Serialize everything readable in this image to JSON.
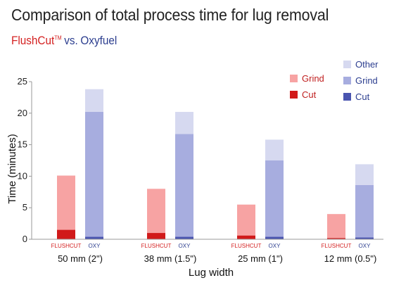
{
  "header": {
    "title": "Comparison of total process time for lug removal",
    "subtitle_a": "FlushCut",
    "subtitle_tm": "TM",
    "subtitle_vs": "vs.",
    "subtitle_b": "Oxyfuel"
  },
  "colors": {
    "flush_grind": "#f7a3a3",
    "flush_cut": "#d11a1a",
    "oxy_other": "#d6d9f0",
    "oxy_grind": "#a7addf",
    "oxy_cut": "#4a55b0",
    "flush_label": "#d42020",
    "oxy_label": "#2c3e8f"
  },
  "chart_data": {
    "type": "bar",
    "stacked": true,
    "xlabel": "Lug width",
    "ylabel": "Time (minutes)",
    "ylim": [
      0,
      25
    ],
    "yticks": [
      0,
      5,
      10,
      15,
      20,
      25
    ],
    "grid": false,
    "legend_position": "top-right",
    "categories": [
      "50 mm (2\")",
      "38 mm (1.5\")",
      "25 mm (1\")",
      "12 mm (0.5\")"
    ],
    "bar_labels": [
      "FLUSHCUT",
      "OXY"
    ],
    "legend": {
      "flushcut": [
        "Grind",
        "Cut"
      ],
      "oxy": [
        "Other",
        "Grind",
        "Cut"
      ]
    },
    "series": [
      {
        "name": "FlushCut Cut",
        "stack": "FLUSHCUT",
        "values": [
          1.5,
          1.0,
          0.6,
          0.2
        ]
      },
      {
        "name": "FlushCut Grind",
        "stack": "FLUSHCUT",
        "values": [
          8.6,
          7.0,
          4.9,
          3.8
        ]
      },
      {
        "name": "Oxy Cut",
        "stack": "OXY",
        "values": [
          0.4,
          0.4,
          0.4,
          0.3
        ]
      },
      {
        "name": "Oxy Grind",
        "stack": "OXY",
        "values": [
          19.8,
          16.3,
          12.1,
          8.3
        ]
      },
      {
        "name": "Oxy Other",
        "stack": "OXY",
        "values": [
          3.6,
          3.5,
          3.3,
          3.3
        ]
      }
    ]
  }
}
